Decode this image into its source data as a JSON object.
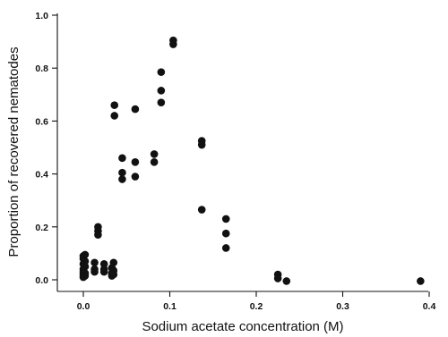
{
  "chart_data": {
    "type": "scatter",
    "title": "",
    "xlabel": "Sodium acetate concentration (M)",
    "ylabel": "Proportion of recovered nematodes",
    "xlim": [
      -0.03,
      0.4
    ],
    "ylim": [
      -0.01,
      1.0
    ],
    "xticks": [
      0.0,
      0.1,
      0.2,
      0.3,
      0.4
    ],
    "xtick_labels": [
      "0.0",
      "0.1",
      "0.2",
      "0.3",
      "0.4"
    ],
    "yticks": [
      0.0,
      0.2,
      0.4,
      0.6,
      0.8,
      1.0
    ],
    "ytick_labels": [
      "0.0",
      "0.2",
      "0.4",
      "0.6",
      "0.8",
      "1.0"
    ],
    "grid": false,
    "marker_color": "#111111",
    "points": [
      {
        "x": 0.0,
        "y": 0.09
      },
      {
        "x": 0.0,
        "y": 0.08
      },
      {
        "x": 0.0,
        "y": 0.06
      },
      {
        "x": 0.0,
        "y": 0.04
      },
      {
        "x": 0.0,
        "y": 0.03
      },
      {
        "x": 0.0,
        "y": 0.02
      },
      {
        "x": 0.0,
        "y": 0.01
      },
      {
        "x": 0.002,
        "y": 0.095
      },
      {
        "x": 0.002,
        "y": 0.07
      },
      {
        "x": 0.002,
        "y": 0.05
      },
      {
        "x": 0.002,
        "y": 0.025
      },
      {
        "x": 0.002,
        "y": 0.015
      },
      {
        "x": 0.013,
        "y": 0.065
      },
      {
        "x": 0.013,
        "y": 0.04
      },
      {
        "x": 0.013,
        "y": 0.03
      },
      {
        "x": 0.017,
        "y": 0.2
      },
      {
        "x": 0.017,
        "y": 0.185
      },
      {
        "x": 0.017,
        "y": 0.17
      },
      {
        "x": 0.024,
        "y": 0.06
      },
      {
        "x": 0.024,
        "y": 0.04
      },
      {
        "x": 0.024,
        "y": 0.03
      },
      {
        "x": 0.033,
        "y": 0.045
      },
      {
        "x": 0.033,
        "y": 0.025
      },
      {
        "x": 0.033,
        "y": 0.015
      },
      {
        "x": 0.035,
        "y": 0.065
      },
      {
        "x": 0.035,
        "y": 0.035
      },
      {
        "x": 0.035,
        "y": 0.02
      },
      {
        "x": 0.036,
        "y": 0.66
      },
      {
        "x": 0.036,
        "y": 0.62
      },
      {
        "x": 0.045,
        "y": 0.46
      },
      {
        "x": 0.045,
        "y": 0.405
      },
      {
        "x": 0.045,
        "y": 0.38
      },
      {
        "x": 0.06,
        "y": 0.645
      },
      {
        "x": 0.06,
        "y": 0.445
      },
      {
        "x": 0.06,
        "y": 0.39
      },
      {
        "x": 0.082,
        "y": 0.475
      },
      {
        "x": 0.082,
        "y": 0.445
      },
      {
        "x": 0.09,
        "y": 0.785
      },
      {
        "x": 0.09,
        "y": 0.715
      },
      {
        "x": 0.09,
        "y": 0.67
      },
      {
        "x": 0.104,
        "y": 0.905
      },
      {
        "x": 0.104,
        "y": 0.89
      },
      {
        "x": 0.137,
        "y": 0.525
      },
      {
        "x": 0.137,
        "y": 0.51
      },
      {
        "x": 0.137,
        "y": 0.265
      },
      {
        "x": 0.165,
        "y": 0.23
      },
      {
        "x": 0.165,
        "y": 0.175
      },
      {
        "x": 0.165,
        "y": 0.12
      },
      {
        "x": 0.225,
        "y": 0.02
      },
      {
        "x": 0.225,
        "y": 0.005
      },
      {
        "x": 0.235,
        "y": -0.005
      },
      {
        "x": 0.39,
        "y": -0.005
      }
    ]
  }
}
